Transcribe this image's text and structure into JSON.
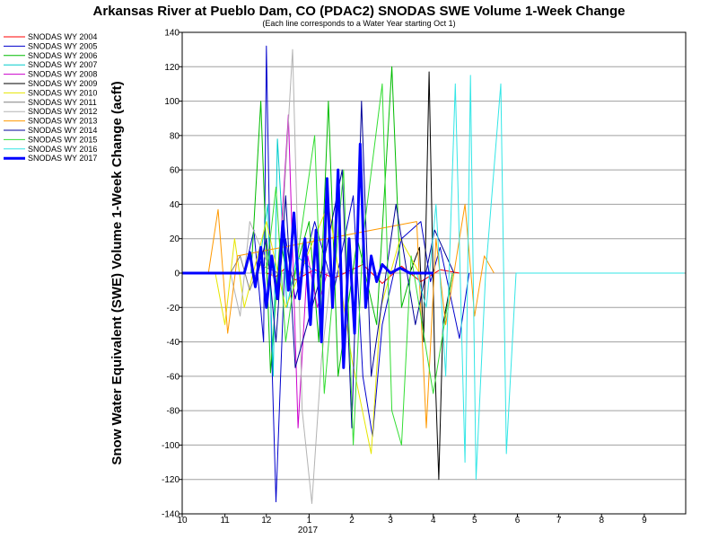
{
  "chart_data": {
    "type": "line",
    "title": "Arkansas River at Pueblo Dam, CO (PDAC2) SNODAS SWE Volume 1-Week Change",
    "subtitle": "(Each line corresponds to a Water Year starting Oct 1)",
    "ylabel": "Snow Water Equivalent (SWE) Volume 1-Week Change (acft)",
    "xlabel": "",
    "x_year_label": "2017",
    "x_range": [
      "2016-10-01",
      "2017-10-01"
    ],
    "x_ticks": [
      {
        "date": "2016-10-01",
        "label": "10"
      },
      {
        "date": "2016-11-01",
        "label": "11"
      },
      {
        "date": "2016-12-01",
        "label": "12"
      },
      {
        "date": "2017-01-01",
        "label": "1"
      },
      {
        "date": "2017-02-01",
        "label": "2"
      },
      {
        "date": "2017-03-01",
        "label": "3"
      },
      {
        "date": "2017-04-01",
        "label": "4"
      },
      {
        "date": "2017-05-01",
        "label": "5"
      },
      {
        "date": "2017-06-01",
        "label": "6"
      },
      {
        "date": "2017-07-01",
        "label": "7"
      },
      {
        "date": "2017-08-01",
        "label": "8"
      },
      {
        "date": "2017-09-01",
        "label": "9"
      }
    ],
    "ylim": [
      -140,
      140
    ],
    "y_ticks": [
      140,
      120,
      100,
      80,
      60,
      40,
      20,
      0,
      -20,
      -40,
      -60,
      -80,
      -100,
      -120,
      -140
    ],
    "grid": true,
    "legend_position": "top-left",
    "series": [
      {
        "name": "SNODAS WY 2004",
        "color": "#ff0000",
        "width": 1,
        "points": [
          [
            "2016-12-01",
            0
          ],
          [
            "2016-12-08",
            -2
          ],
          [
            "2016-12-15",
            3
          ],
          [
            "2016-12-22",
            -4
          ],
          [
            "2017-01-05",
            2
          ],
          [
            "2017-01-19",
            -3
          ],
          [
            "2017-02-09",
            5
          ],
          [
            "2017-02-23",
            -6
          ],
          [
            "2017-03-09",
            4
          ],
          [
            "2017-03-23",
            -5
          ],
          [
            "2017-04-06",
            2
          ],
          [
            "2017-04-20",
            0
          ]
        ]
      },
      {
        "name": "SNODAS WY 2005",
        "color": "#0000cc",
        "width": 1,
        "points": [
          [
            "2016-11-15",
            0
          ],
          [
            "2016-11-22",
            25
          ],
          [
            "2016-11-29",
            -40
          ],
          [
            "2016-12-01",
            132
          ],
          [
            "2016-12-05",
            -50
          ],
          [
            "2016-12-08",
            -133
          ],
          [
            "2016-12-15",
            20
          ],
          [
            "2016-12-22",
            -15
          ],
          [
            "2017-01-05",
            30
          ],
          [
            "2017-01-19",
            -10
          ],
          [
            "2017-02-02",
            45
          ],
          [
            "2017-02-09",
            -60
          ],
          [
            "2017-02-16",
            -95
          ],
          [
            "2017-02-23",
            -30
          ],
          [
            "2017-03-09",
            20
          ],
          [
            "2017-03-23",
            30
          ],
          [
            "2017-03-30",
            -5
          ],
          [
            "2017-04-06",
            15
          ],
          [
            "2017-04-20",
            -38
          ],
          [
            "2017-04-27",
            0
          ]
        ]
      },
      {
        "name": "SNODAS WY 2006",
        "color": "#00bb00",
        "width": 1,
        "points": [
          [
            "2016-11-20",
            0
          ],
          [
            "2016-11-27",
            100
          ],
          [
            "2016-12-04",
            -58
          ],
          [
            "2016-12-11",
            20
          ],
          [
            "2016-12-18",
            -10
          ],
          [
            "2017-01-01",
            30
          ],
          [
            "2017-01-08",
            -40
          ],
          [
            "2017-01-15",
            100
          ],
          [
            "2017-01-22",
            -60
          ],
          [
            "2017-02-05",
            20
          ],
          [
            "2017-02-19",
            -30
          ],
          [
            "2017-03-02",
            120
          ],
          [
            "2017-03-09",
            -20
          ],
          [
            "2017-03-16",
            0
          ]
        ]
      },
      {
        "name": "SNODAS WY 2007",
        "color": "#00cccc",
        "width": 1,
        "points": [
          [
            "2016-11-25",
            0
          ],
          [
            "2016-12-02",
            40
          ],
          [
            "2016-12-06",
            -60
          ],
          [
            "2016-12-09",
            78
          ],
          [
            "2016-12-16",
            -20
          ],
          [
            "2016-12-23",
            10
          ],
          [
            "2017-01-06",
            0
          ]
        ]
      },
      {
        "name": "SNODAS WY 2008",
        "color": "#cc00cc",
        "width": 1,
        "points": [
          [
            "2016-12-10",
            0
          ],
          [
            "2016-12-17",
            92
          ],
          [
            "2016-12-24",
            -90
          ],
          [
            "2016-12-31",
            10
          ],
          [
            "2017-01-07",
            -20
          ],
          [
            "2017-01-14",
            0
          ]
        ]
      },
      {
        "name": "SNODAS WY 2009",
        "color": "#000000",
        "width": 1,
        "points": [
          [
            "2017-03-15",
            0
          ],
          [
            "2017-03-22",
            15
          ],
          [
            "2017-03-25",
            -40
          ],
          [
            "2017-03-29",
            117
          ],
          [
            "2017-04-02",
            -50
          ],
          [
            "2017-04-05",
            -120
          ],
          [
            "2017-04-08",
            -30
          ],
          [
            "2017-04-15",
            0
          ]
        ]
      },
      {
        "name": "SNODAS WY 2010",
        "color": "#e6e600",
        "width": 1,
        "points": [
          [
            "2016-10-25",
            0
          ],
          [
            "2016-11-01",
            -30
          ],
          [
            "2016-11-08",
            20
          ],
          [
            "2016-11-15",
            -20
          ],
          [
            "2016-12-01",
            30
          ],
          [
            "2016-12-15",
            -20
          ],
          [
            "2017-01-15",
            40
          ],
          [
            "2017-02-01",
            -50
          ],
          [
            "2017-02-15",
            -105
          ],
          [
            "2017-02-22",
            -20
          ],
          [
            "2017-03-08",
            20
          ],
          [
            "2017-03-22",
            0
          ]
        ]
      },
      {
        "name": "SNODAS WY 2011",
        "color": "#808080",
        "width": 1,
        "points": [
          [
            "2016-11-05",
            0
          ],
          [
            "2016-11-12",
            10
          ],
          [
            "2016-11-19",
            -10
          ],
          [
            "2016-11-26",
            5
          ],
          [
            "2016-12-10",
            0
          ]
        ]
      },
      {
        "name": "SNODAS WY 2012",
        "color": "#b3b3b3",
        "width": 1,
        "points": [
          [
            "2016-11-05",
            0
          ],
          [
            "2016-11-12",
            -25
          ],
          [
            "2016-11-19",
            30
          ],
          [
            "2016-12-10",
            -10
          ],
          [
            "2016-12-20",
            130
          ],
          [
            "2016-12-27",
            -80
          ],
          [
            "2017-01-03",
            -134
          ],
          [
            "2017-01-10",
            -50
          ],
          [
            "2017-01-17",
            0
          ]
        ]
      },
      {
        "name": "SNODAS WY 2013",
        "color": "#ff9900",
        "width": 1,
        "points": [
          [
            "2016-10-20",
            0
          ],
          [
            "2016-10-27",
            37
          ],
          [
            "2016-11-03",
            -35
          ],
          [
            "2016-11-10",
            10
          ],
          [
            "2017-03-20",
            30
          ],
          [
            "2017-03-27",
            -90
          ],
          [
            "2017-04-03",
            20
          ],
          [
            "2017-04-10",
            -30
          ],
          [
            "2017-04-24",
            40
          ],
          [
            "2017-05-01",
            -25
          ],
          [
            "2017-05-08",
            10
          ],
          [
            "2017-05-15",
            0
          ]
        ]
      },
      {
        "name": "SNODAS WY 2014",
        "color": "#000099",
        "width": 1,
        "points": [
          [
            "2016-11-25",
            0
          ],
          [
            "2016-12-01",
            20
          ],
          [
            "2016-12-08",
            -40
          ],
          [
            "2016-12-15",
            45
          ],
          [
            "2016-12-22",
            -55
          ],
          [
            "2017-01-10",
            0
          ],
          [
            "2017-01-25",
            60
          ],
          [
            "2017-02-01",
            -90
          ],
          [
            "2017-02-08",
            100
          ],
          [
            "2017-02-15",
            -60
          ],
          [
            "2017-03-05",
            40
          ],
          [
            "2017-03-19",
            -30
          ],
          [
            "2017-04-02",
            25
          ],
          [
            "2017-04-16",
            0
          ]
        ]
      },
      {
        "name": "SNODAS WY 2015",
        "color": "#33dd33",
        "width": 1,
        "points": [
          [
            "2016-12-01",
            0
          ],
          [
            "2016-12-08",
            50
          ],
          [
            "2016-12-15",
            -40
          ],
          [
            "2017-01-05",
            80
          ],
          [
            "2017-01-12",
            -70
          ],
          [
            "2017-01-26",
            60
          ],
          [
            "2017-02-02",
            -100
          ],
          [
            "2017-02-09",
            20
          ],
          [
            "2017-02-23",
            110
          ],
          [
            "2017-03-02",
            -80
          ],
          [
            "2017-03-09",
            -100
          ],
          [
            "2017-03-16",
            10
          ],
          [
            "2017-04-01",
            -70
          ],
          [
            "2017-04-15",
            0
          ]
        ]
      },
      {
        "name": "SNODAS WY 2016",
        "color": "#33e6e6",
        "width": 1,
        "points": [
          [
            "2017-03-20",
            0
          ],
          [
            "2017-03-27",
            -20
          ],
          [
            "2017-04-03",
            40
          ],
          [
            "2017-04-10",
            -60
          ],
          [
            "2017-04-17",
            110
          ],
          [
            "2017-04-24",
            -110
          ],
          [
            "2017-04-28",
            115
          ],
          [
            "2017-05-02",
            -120
          ],
          [
            "2017-05-09",
            0
          ],
          [
            "2017-05-20",
            110
          ],
          [
            "2017-05-24",
            -105
          ],
          [
            "2017-05-31",
            0
          ],
          [
            "2017-06-15",
            0
          ],
          [
            "2017-09-30",
            0
          ]
        ]
      },
      {
        "name": "SNODAS WY 2017",
        "color": "#0000ff",
        "width": 3,
        "points": [
          [
            "2016-10-01",
            0
          ],
          [
            "2016-11-15",
            0
          ],
          [
            "2016-11-19",
            12
          ],
          [
            "2016-11-23",
            -8
          ],
          [
            "2016-11-27",
            15
          ],
          [
            "2016-12-01",
            -20
          ],
          [
            "2016-12-05",
            10
          ],
          [
            "2016-12-09",
            -15
          ],
          [
            "2016-12-13",
            30
          ],
          [
            "2016-12-17",
            -10
          ],
          [
            "2016-12-21",
            35
          ],
          [
            "2016-12-25",
            -15
          ],
          [
            "2016-12-29",
            20
          ],
          [
            "2017-01-02",
            -30
          ],
          [
            "2017-01-06",
            25
          ],
          [
            "2017-01-10",
            -40
          ],
          [
            "2017-01-14",
            55
          ],
          [
            "2017-01-18",
            -20
          ],
          [
            "2017-01-22",
            60
          ],
          [
            "2017-01-26",
            -55
          ],
          [
            "2017-01-30",
            20
          ],
          [
            "2017-02-03",
            -35
          ],
          [
            "2017-02-07",
            75
          ],
          [
            "2017-02-11",
            -20
          ],
          [
            "2017-02-15",
            10
          ],
          [
            "2017-02-19",
            -5
          ],
          [
            "2017-02-23",
            5
          ],
          [
            "2017-03-01",
            0
          ],
          [
            "2017-03-08",
            3
          ],
          [
            "2017-03-15",
            0
          ],
          [
            "2017-04-01",
            0
          ]
        ]
      }
    ]
  }
}
